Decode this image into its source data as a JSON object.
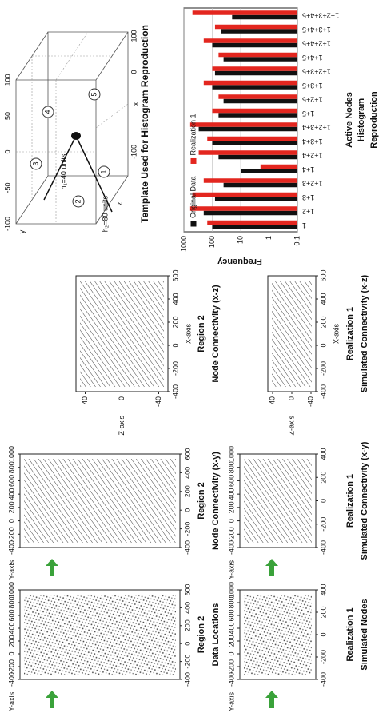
{
  "template": {
    "title": "Template Used for Histogram Reproduction",
    "h1": "h₁=40 units",
    "h2": "h₂=80 units",
    "axis_labels": [
      "x",
      "y",
      "z"
    ],
    "y_ticks": [
      "100",
      "50",
      "0",
      "-50",
      "-100"
    ],
    "x_ticks": [
      "100",
      "0",
      "-100"
    ],
    "nodes": [
      "1",
      "2",
      "3",
      "4",
      "5"
    ]
  },
  "panels": [
    {
      "title": [
        "Region 2",
        "Data Locations"
      ],
      "kind": "xy",
      "style": "dots",
      "y_label": "Y-axis",
      "y_ticks": [
        -400,
        -200,
        0,
        200,
        400,
        600,
        800,
        1000
      ],
      "y_lim": [
        -400,
        1000
      ],
      "x_ticks": [
        -400,
        -200,
        0,
        200,
        400,
        600
      ],
      "x_lim": [
        -400,
        600
      ]
    },
    {
      "title": [
        "Region 2",
        "Node Connectivity (x-y)"
      ],
      "kind": "xy",
      "style": "lines",
      "y_label": "Y-axis",
      "y_ticks": [
        -400,
        -200,
        0,
        200,
        400,
        600,
        800,
        1000
      ],
      "y_lim": [
        -400,
        1000
      ],
      "x_ticks": [
        -400,
        -200,
        0,
        200,
        400,
        600
      ],
      "x_lim": [
        -400,
        600
      ]
    },
    {
      "title": [
        "Region 2",
        "Node Connectivity (x-z)"
      ],
      "kind": "xz",
      "style": "lines",
      "x_label": "X-axis",
      "x_ticks": [
        -400,
        -200,
        0,
        200,
        400,
        600
      ],
      "x_lim": [
        -400,
        600
      ],
      "z_label": "Z-axis",
      "z_ticks": [
        -40,
        0,
        40
      ],
      "z_lim": [
        -50,
        50
      ]
    },
    {
      "title": [
        "Realization 1",
        "Simulated Nodes"
      ],
      "kind": "xy",
      "style": "dots",
      "y_label": "Y-axis",
      "y_ticks": [
        -400,
        -200,
        0,
        200,
        400,
        600,
        800,
        1000
      ],
      "y_lim": [
        -400,
        1000
      ],
      "x_ticks": [
        -400,
        -200,
        0,
        200,
        400
      ],
      "x_lim": [
        -400,
        400
      ]
    },
    {
      "title": [
        "Realization 1",
        "Simulated Connectivity (x-y)"
      ],
      "kind": "xy",
      "style": "lines",
      "y_label": "Y-axis",
      "y_ticks": [
        -400,
        -200,
        0,
        200,
        400,
        600,
        800,
        1000
      ],
      "y_lim": [
        -400,
        1000
      ],
      "x_ticks": [
        -400,
        -200,
        0,
        200,
        400
      ],
      "x_lim": [
        -400,
        400
      ]
    },
    {
      "title": [
        "Realization 1",
        "Simulated Connectivity (x-z)"
      ],
      "kind": "xz",
      "style": "lines",
      "x_label": "X-axis",
      "x_ticks": [
        -400,
        -200,
        0,
        200,
        400,
        600
      ],
      "x_lim": [
        -400,
        600
      ],
      "z_label": "Z-axis",
      "z_ticks": [
        -40,
        0,
        40
      ],
      "z_lim": [
        -50,
        50
      ]
    }
  ],
  "chart_data": {
    "type": "bar",
    "categories": [
      "1",
      "1+2",
      "1+3",
      "1+2+3",
      "1+4",
      "1+2+4",
      "1+3+4",
      "1+2+3+4",
      "1+5",
      "1+2+5",
      "1+3+5",
      "1+2+3+5",
      "1+4+5",
      "1+2+4+5",
      "1+3+4+5",
      "1+2+3+4+5"
    ],
    "series": [
      {
        "name": "Original Data",
        "color": "#111111",
        "values": [
          100,
          200,
          80,
          40,
          10,
          60,
          100,
          300,
          60,
          40,
          100,
          80,
          40,
          100,
          50,
          20
        ]
      },
      {
        "name": "Realization 1",
        "color": "#e3261f",
        "values": [
          150,
          600,
          500,
          200,
          2,
          300,
          150,
          600,
          100,
          60,
          200,
          100,
          60,
          200,
          80,
          500
        ]
      }
    ],
    "ylabel": "Frequency",
    "xlabel": "Active Nodes",
    "caption": [
      "Histogram",
      "Reproduction"
    ],
    "ylim": [
      0.1,
      1000
    ],
    "yticks": [
      0.1,
      1,
      10,
      100,
      1000
    ],
    "log_scale": true,
    "grid": true,
    "legend": "upper left"
  }
}
